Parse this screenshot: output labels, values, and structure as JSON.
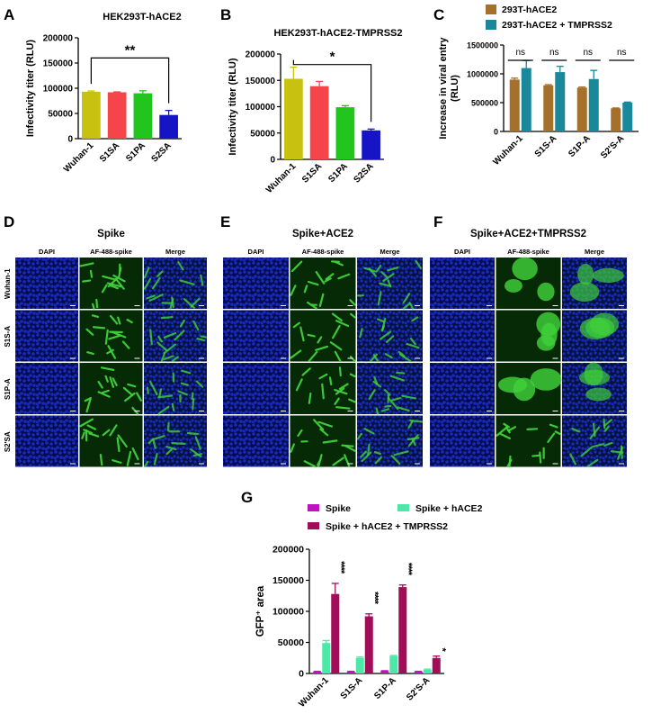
{
  "panels": {
    "A": "A",
    "B": "B",
    "C": "C",
    "D": "D",
    "E": "E",
    "F": "F",
    "G": "G"
  },
  "micro": {
    "col_labels": [
      "DAPI",
      "AF-488-spike",
      "Merge"
    ],
    "row_labels": [
      "Wuhan-1",
      "S1S-A",
      "S1P-A",
      "S2'SA"
    ],
    "groups": [
      {
        "title": "Spike"
      },
      {
        "title": "Spike+ACE2"
      },
      {
        "title": "Spike+ACE2+TMPRSS2"
      }
    ],
    "colors": {
      "dapi": "#1a2ab8",
      "green": "#3fd23a",
      "dark_green": "#062a06"
    }
  },
  "chart_data": [
    {
      "id": "A",
      "type": "bar",
      "title": "HEK293T-hACE2",
      "ylabel": "Infectivity titer (RLU)",
      "categories": [
        "Wuhan-1",
        "S1SA",
        "S1PA",
        "S2SA"
      ],
      "values": [
        93000,
        92000,
        90000,
        47000
      ],
      "errors": [
        1500,
        800,
        5000,
        9000
      ],
      "colors": [
        "#c6c20f",
        "#f6454a",
        "#21c51e",
        "#1515c6"
      ],
      "ylim": [
        0,
        200000
      ],
      "yticks": [
        "0",
        "50000",
        "100000",
        "150000",
        "200000"
      ],
      "significance": [
        {
          "from": 0,
          "to": 3,
          "label": "**",
          "y": 160000
        }
      ]
    },
    {
      "id": "B",
      "type": "bar",
      "title": "HEK293T-hACE2-TMPRSS2",
      "ylabel": "Infectivity titer (RLU)",
      "categories": [
        "Wuhan-1",
        "S1SA",
        "S1PA",
        "S2SA"
      ],
      "values": [
        153000,
        139000,
        99000,
        55000
      ],
      "errors": [
        22000,
        9000,
        3000,
        2500
      ],
      "colors": [
        "#c6c20f",
        "#f6454a",
        "#21c51e",
        "#1515c6"
      ],
      "ylim": [
        0,
        200000
      ],
      "yticks": [
        "0",
        "50000",
        "100000",
        "150000",
        "200000"
      ],
      "significance": [
        {
          "from": 0,
          "to": 3,
          "label": "*",
          "y": 180000
        }
      ]
    },
    {
      "id": "C",
      "type": "bar",
      "ylabel": "Increase in viral entry (RLU)",
      "ylabel_lines": [
        "Increase in viral entry",
        "(RLU)"
      ],
      "categories": [
        "Wuhan-1",
        "S1S-A",
        "S1P-A",
        "S2'S-A"
      ],
      "series": [
        {
          "name": "293T-hACE2",
          "color": "#a5702a",
          "values": [
            900000,
            800000,
            760000,
            400000
          ],
          "errors": [
            25000,
            12000,
            12000,
            8000
          ]
        },
        {
          "name": "293T-hACE2 + TMPRSS2",
          "color": "#18889a",
          "values": [
            1100000,
            1030000,
            910000,
            500000
          ],
          "errors": [
            130000,
            100000,
            150000,
            10000
          ]
        }
      ],
      "ylim": [
        0,
        1500000
      ],
      "yticks": [
        "0",
        "500000",
        "1000000",
        "1500000"
      ],
      "annotations": [
        "ns",
        "ns",
        "ns",
        "ns"
      ]
    },
    {
      "id": "G",
      "type": "bar",
      "ylabel": "GFP⁺ area",
      "categories": [
        "Wuhan-1",
        "S1S-A",
        "S1P-A",
        "S2'S-A"
      ],
      "series": [
        {
          "name": "Spike",
          "color": "#c013c0",
          "values": [
            3000,
            3000,
            4000,
            3000
          ],
          "errors": [
            500,
            500,
            500,
            500
          ],
          "stars": [
            "",
            "",
            "",
            ""
          ]
        },
        {
          "name": "Spike + hACE2",
          "color": "#4de8a8",
          "values": [
            49000,
            25000,
            28000,
            6000
          ],
          "errors": [
            4000,
            1500,
            1000,
            1000
          ],
          "stars": [
            "****",
            "*",
            "*",
            ""
          ]
        },
        {
          "name": "Spike + hACE2 + TMPRSS2",
          "color": "#a10d57",
          "values": [
            128000,
            92000,
            139000,
            25000
          ],
          "errors": [
            17000,
            4000,
            3500,
            3000
          ],
          "stars": [
            "****",
            "****",
            "****",
            "*"
          ]
        }
      ],
      "ylim": [
        0,
        200000
      ],
      "yticks": [
        "0",
        "50000",
        "100000",
        "150000",
        "200000"
      ]
    }
  ]
}
